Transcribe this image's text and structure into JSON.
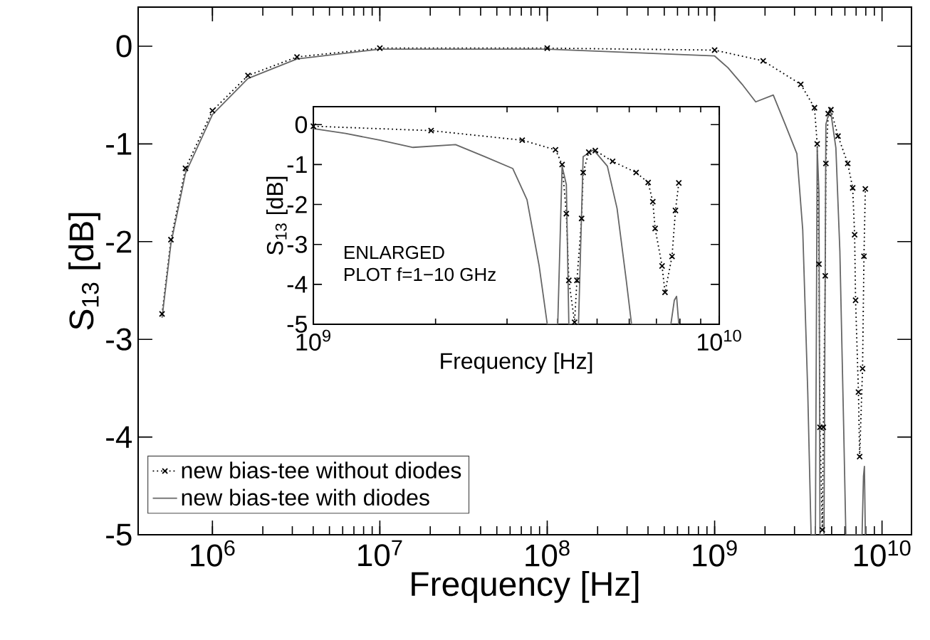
{
  "chart_data": [
    {
      "type": "line",
      "log": "x",
      "xlabel": "Frequency [Hz]",
      "ylabel": "S$_{13}$ [dB]",
      "legend": "bottom left",
      "xlim": [
        360000,
        15000000000
      ],
      "ylim": [
        -5,
        0.4
      ],
      "xticks": [
        {
          "value": 1000000,
          "label": "10$^{6}$"
        },
        {
          "value": 10000000,
          "label": "10$^{7}$"
        },
        {
          "value": 100000000,
          "label": "10$^{8}$"
        },
        {
          "value": 1000000000,
          "label": "10$^{9}$"
        },
        {
          "value": 10000000000,
          "label": "10$^{10}$"
        }
      ],
      "yticks": [
        0,
        -1,
        -2,
        -3,
        -4,
        -5
      ],
      "series": [
        {
          "name": "new bias-tee without diodes",
          "color": "#000000",
          "marker": "cross",
          "line_style": "dotted",
          "x": [
            500000,
            565000,
            690000,
            1000000,
            1630000,
            3200000,
            10000000,
            100000000,
            1000000000,
            1950000000,
            3270000000,
            3950000000,
            4100000000,
            4200000000,
            4260000000,
            4400000000,
            4460000000,
            4580000000,
            4620000000,
            4770000000,
            4950000000,
            5460000000,
            6240000000,
            6680000000,
            6860000000,
            6950000000,
            7230000000,
            7350000000,
            7650000000,
            7800000000,
            7950000000
          ],
          "values": [
            -2.74,
            -1.98,
            -1.25,
            -0.66,
            -0.3,
            -0.11,
            -0.02,
            -0.02,
            -0.04,
            -0.15,
            -0.39,
            -0.63,
            -1.0,
            -2.23,
            -3.9,
            -4.95,
            -3.9,
            -2.35,
            -1.2,
            -0.69,
            -0.65,
            -0.92,
            -1.2,
            -1.45,
            -1.93,
            -2.6,
            -3.54,
            -4.2,
            -3.3,
            -2.15,
            -1.46
          ]
        },
        {
          "name": "new bias-tee with diodes",
          "color": "#666666",
          "marker": "none",
          "line_style": "solid",
          "x": [
            500000,
            565000,
            690000,
            1000000,
            1630000,
            3200000,
            10000000,
            100000000,
            1000000000,
            1200000000,
            1460000000,
            1760000000,
            2240000000,
            2640000000,
            3100000000,
            3360000000,
            3600000000,
            3770000000,
            4000000000,
            4100000000,
            4200000000,
            4260000000,
            4500000000,
            4620000000,
            4900000000,
            5300000000,
            5600000000,
            5900000000,
            6080000000,
            7600000000,
            7750000000,
            7850000000,
            7950000000
          ],
          "values": [
            -2.78,
            -2.02,
            -1.3,
            -0.7,
            -0.33,
            -0.13,
            -0.03,
            -0.03,
            -0.1,
            -0.22,
            -0.39,
            -0.57,
            -0.5,
            -0.8,
            -1.1,
            -1.88,
            -3.54,
            -5,
            -5,
            -1.04,
            -1.5,
            -5,
            -5,
            -0.8,
            -0.63,
            -1.04,
            -2.1,
            -3.9,
            -5,
            -5,
            -4.4,
            -4.3,
            -5
          ]
        }
      ]
    },
    {
      "type": "line",
      "log": "x",
      "xlabel": "Frequency [Hz]",
      "ylabel": "S$_{13}$ [dB]",
      "xlim": [
        1000000000,
        10000000000
      ],
      "ylim": [
        -5,
        0.45
      ],
      "xticks": [
        {
          "value": 1000000000,
          "label": "10$^{9}$"
        },
        {
          "value": 10000000000,
          "label": "10$^{10}$"
        }
      ],
      "yticks": [
        0,
        -1,
        -2,
        -3,
        -4,
        -5
      ],
      "annotations": [
        "ENLARGED",
        "PLOT f=1−10 GHz"
      ],
      "series": [
        {
          "color": "#000000",
          "marker": "cross",
          "line_style": "dotted",
          "x": [
            1000000000,
            1950000000,
            3270000000,
            3950000000,
            4100000000,
            4200000000,
            4260000000,
            4400000000,
            4460000000,
            4580000000,
            4620000000,
            4770000000,
            4950000000,
            5460000000,
            6240000000,
            6680000000,
            6860000000,
            6950000000,
            7230000000,
            7350000000,
            7650000000,
            7800000000,
            7950000000
          ],
          "values": [
            -0.04,
            -0.15,
            -0.39,
            -0.63,
            -1.0,
            -2.23,
            -3.9,
            -4.95,
            -3.9,
            -2.35,
            -1.2,
            -0.69,
            -0.65,
            -0.92,
            -1.2,
            -1.45,
            -1.93,
            -2.6,
            -3.54,
            -4.2,
            -3.3,
            -2.15,
            -1.46
          ]
        },
        {
          "color": "#666666",
          "marker": "none",
          "line_style": "solid",
          "x": [
            1000000000,
            1200000000,
            1460000000,
            1760000000,
            2240000000,
            2640000000,
            3100000000,
            3360000000,
            3600000000,
            3770000000,
            4000000000,
            4100000000,
            4200000000,
            4260000000,
            4500000000,
            4620000000,
            4900000000,
            5300000000,
            5600000000,
            5900000000,
            6080000000,
            7600000000,
            7750000000,
            7850000000,
            7950000000
          ],
          "values": [
            -0.1,
            -0.22,
            -0.39,
            -0.57,
            -0.5,
            -0.8,
            -1.1,
            -1.88,
            -3.54,
            -5,
            -5,
            -1.04,
            -1.5,
            -5,
            -5,
            -0.8,
            -0.63,
            -1.04,
            -2.1,
            -3.9,
            -5,
            -5,
            -4.4,
            -4.3,
            -5
          ]
        }
      ]
    }
  ]
}
